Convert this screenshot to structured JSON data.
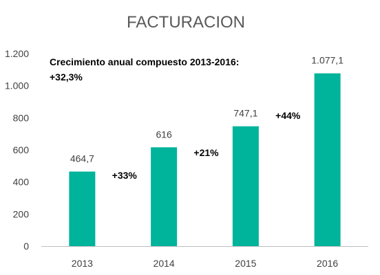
{
  "chart_data": {
    "type": "bar",
    "title": "FACTURACION",
    "categories": [
      "2013",
      "2014",
      "2015",
      "2016"
    ],
    "values": [
      464.7,
      616,
      747.1,
      1077.1
    ],
    "data_labels": [
      "464,7",
      "616",
      "747,1",
      "1.077,1"
    ],
    "ylim": [
      0,
      1200
    ],
    "y_ticks": [
      0,
      200,
      400,
      600,
      800,
      1000,
      1200
    ],
    "y_tick_labels": [
      "0",
      "200",
      "400",
      "600",
      "800",
      "1.000",
      "1.200"
    ],
    "xlabel": "",
    "ylabel": "",
    "grid": false,
    "bar_color": "#00B39B",
    "annotation": {
      "line1": "Crecimiento anual compuesto 2013-2016:",
      "line2": "+32,3%"
    },
    "growth_labels": [
      "+33%",
      "+21%",
      "+44%"
    ]
  }
}
